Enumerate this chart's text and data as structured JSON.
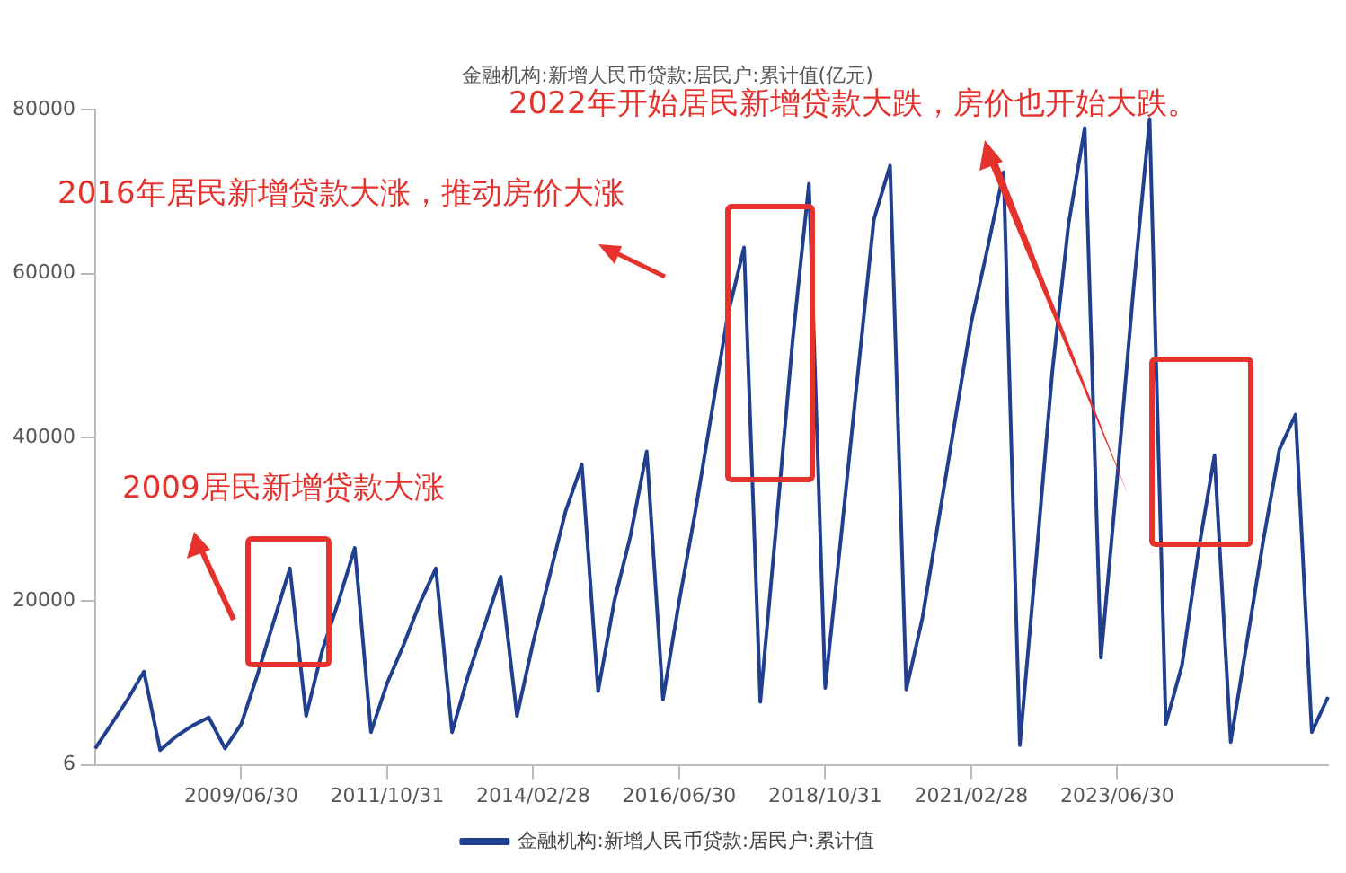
{
  "chart_data": {
    "type": "line",
    "title": "金融机构:新增人民币贷款:居民户:累计值(亿元)",
    "categories": [
      null,
      null,
      null,
      null,
      null,
      null,
      null,
      null,
      null,
      "2009/06/30",
      null,
      null,
      null,
      null,
      null,
      null,
      null,
      null,
      "2011/10/31",
      null,
      null,
      null,
      null,
      null,
      null,
      null,
      null,
      "2014/02/28",
      null,
      null,
      null,
      null,
      null,
      null,
      null,
      null,
      "2016/06/30",
      null,
      null,
      null,
      null,
      null,
      null,
      null,
      null,
      "2018/10/31",
      null,
      null,
      null,
      null,
      null,
      null,
      null,
      null,
      "2021/02/28",
      null,
      null,
      null,
      null,
      null,
      null,
      null,
      null,
      "2023/06/30",
      null,
      null,
      null,
      null,
      null,
      null,
      null,
      null,
      null,
      null,
      null,
      null,
      null
    ],
    "series": [
      {
        "name": "金融机构:新增人民币贷款:居民户:累计值",
        "color": "#1f3f8f",
        "values": [
          2000,
          5000,
          8000,
          11400,
          1800,
          3500,
          4800,
          5800,
          2000,
          5000,
          11000,
          17500,
          24000,
          6000,
          14000,
          20000,
          26500,
          4000,
          10000,
          14600,
          19700,
          24000,
          4000,
          11000,
          17000,
          23000,
          6000,
          15000,
          23000,
          31000,
          36700,
          9000,
          20000,
          28000,
          38300,
          8000,
          20000,
          31000,
          43000,
          55000,
          63200,
          7700,
          29600,
          52000,
          71000,
          9400,
          28300,
          47500,
          66600,
          73200,
          9200,
          18000,
          30000,
          42000,
          54000,
          63000,
          72400,
          2400,
          25000,
          48000,
          66000,
          77800,
          13100,
          35000,
          58000,
          78900,
          5000,
          12200,
          26000,
          37800,
          2800,
          15000,
          27300,
          38500,
          42800,
          4000,
          8300
        ]
      }
    ],
    "ylim": [
      6,
      80000
    ],
    "yticks": [
      6,
      20000,
      40000,
      60000,
      80000
    ],
    "grid": false,
    "legend": "bottom",
    "marker": "none",
    "line_style": "solid",
    "annotations": [
      "2016年居民新增贷款大涨，推动房价大涨",
      "2022年开始居民新增贷款大跌，房价也开始大跌。",
      "2009居民新增贷款大涨"
    ]
  }
}
